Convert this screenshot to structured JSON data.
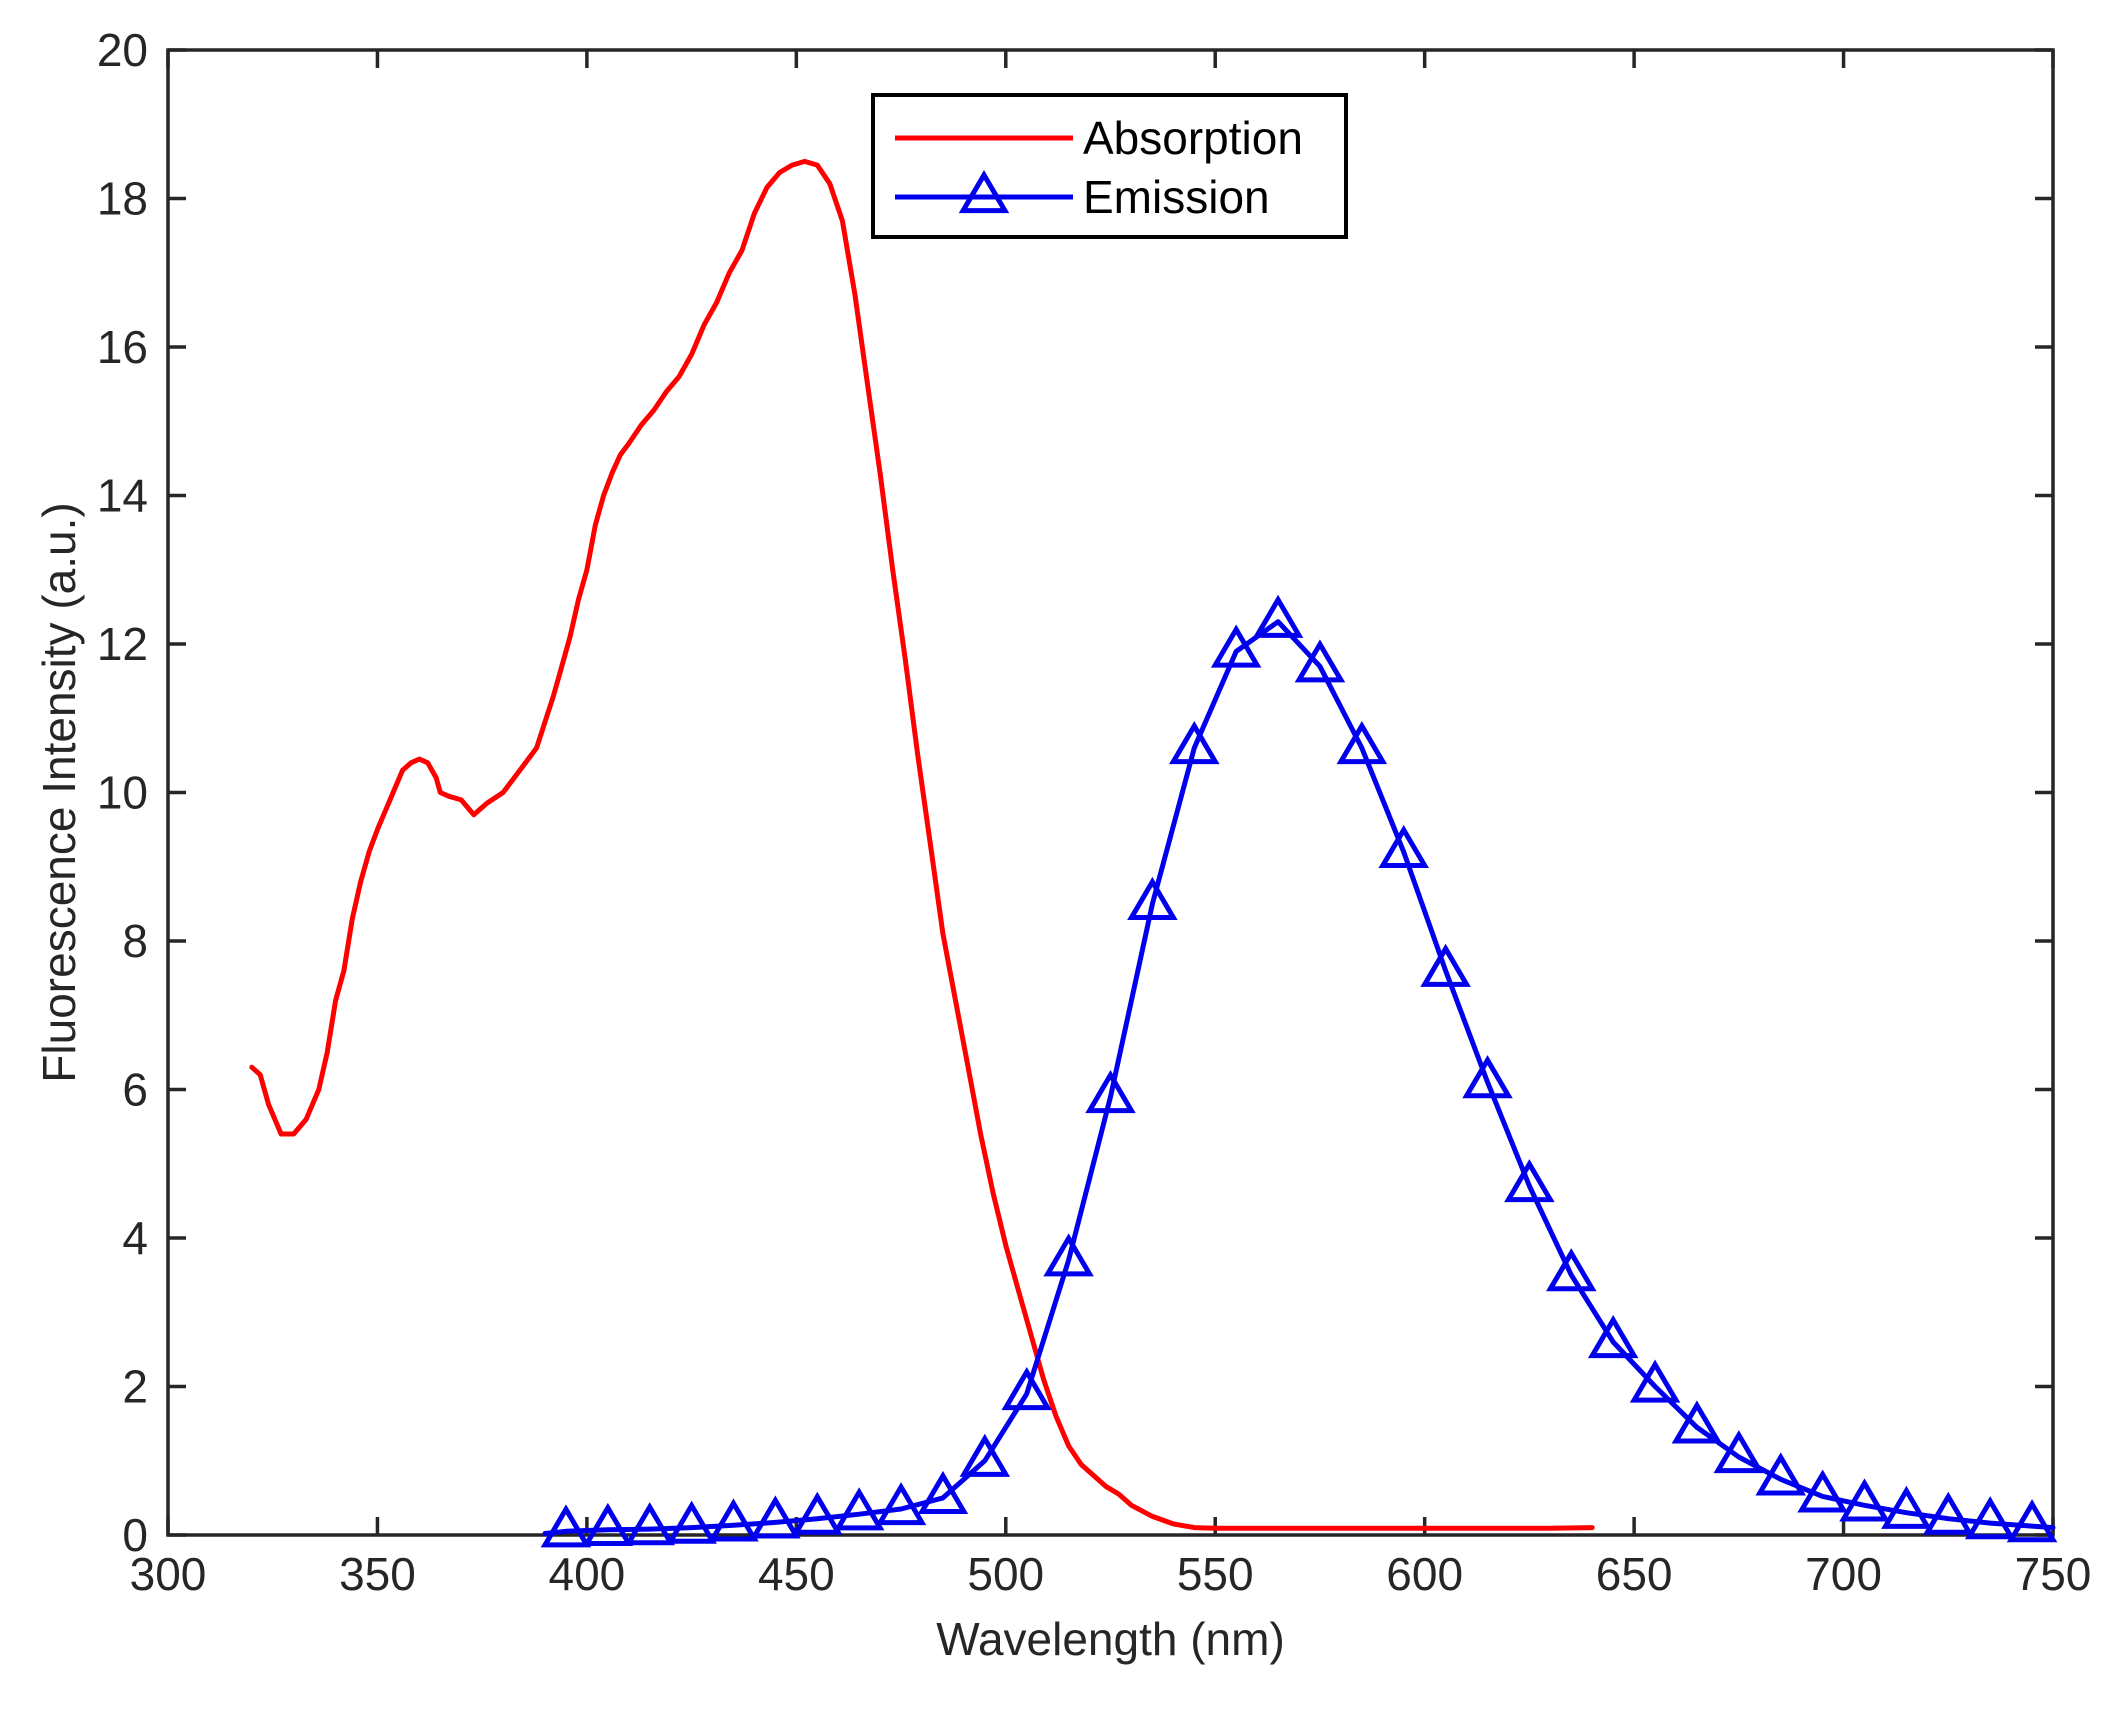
{
  "chart_data": {
    "type": "line",
    "title": "",
    "xlabel": "Wavelength (nm)",
    "ylabel": "Fluorescence Intensity (a.u.)",
    "xlim": [
      300,
      750
    ],
    "ylim": [
      0,
      20
    ],
    "xticks": [
      300,
      350,
      400,
      450,
      500,
      550,
      600,
      650,
      700,
      750
    ],
    "yticks": [
      0,
      2,
      4,
      6,
      8,
      10,
      12,
      14,
      16,
      18,
      20
    ],
    "xtick_labels": [
      "300",
      "350",
      "400",
      "450",
      "500",
      "550",
      "600",
      "650",
      "700",
      "750"
    ],
    "ytick_labels": [
      "0",
      "2",
      "4",
      "6",
      "8",
      "10",
      "12",
      "14",
      "16",
      "18",
      "20"
    ],
    "grid": false,
    "legend_position": "top-center",
    "series": [
      {
        "name": "Absorption",
        "color": "#ff0000",
        "marker": "none",
        "x": [
          320,
          322,
          324,
          327,
          330,
          333,
          336,
          338,
          340,
          342,
          344,
          346,
          348,
          350,
          353,
          356,
          358,
          360,
          362,
          364,
          365,
          367,
          370,
          373,
          376,
          380,
          384,
          388,
          392,
          394,
          396,
          398,
          400,
          402,
          404,
          406,
          408,
          410,
          413,
          416,
          419,
          422,
          425,
          428,
          431,
          434,
          437,
          440,
          443,
          446,
          449,
          452,
          455,
          458,
          461,
          464,
          467,
          470,
          473,
          476,
          479,
          482,
          485,
          488,
          491,
          494,
          497,
          500,
          503,
          506,
          509,
          512,
          515,
          518,
          521,
          524,
          527,
          530,
          535,
          540,
          545,
          550,
          555,
          560,
          570,
          580,
          590,
          600,
          610,
          620,
          630,
          640
        ],
        "y": [
          6.3,
          6.2,
          5.8,
          5.4,
          5.4,
          5.6,
          6.0,
          6.5,
          7.2,
          7.6,
          8.3,
          8.8,
          9.2,
          9.5,
          9.9,
          10.3,
          10.4,
          10.45,
          10.4,
          10.2,
          10.0,
          9.95,
          9.9,
          9.7,
          9.85,
          10.0,
          10.3,
          10.6,
          11.3,
          11.7,
          12.1,
          12.6,
          13.0,
          13.6,
          14.0,
          14.3,
          14.55,
          14.7,
          14.95,
          15.15,
          15.4,
          15.6,
          15.9,
          16.3,
          16.6,
          17.0,
          17.3,
          17.8,
          18.15,
          18.35,
          18.45,
          18.5,
          18.45,
          18.2,
          17.7,
          16.7,
          15.5,
          14.3,
          13.0,
          11.8,
          10.5,
          9.3,
          8.1,
          7.2,
          6.3,
          5.4,
          4.6,
          3.9,
          3.3,
          2.7,
          2.1,
          1.6,
          1.2,
          0.95,
          0.8,
          0.65,
          0.55,
          0.4,
          0.25,
          0.15,
          0.1,
          0.09,
          0.09,
          0.09,
          0.09,
          0.09,
          0.09,
          0.09,
          0.09,
          0.09,
          0.09,
          0.1
        ]
      },
      {
        "name": "Emission",
        "color": "#0000ee",
        "marker": "triangle",
        "x": [
          390,
          395,
          405,
          415,
          425,
          435,
          445,
          455,
          465,
          475,
          485,
          495,
          505,
          515,
          525,
          535,
          545,
          555,
          565,
          575,
          585,
          595,
          605,
          615,
          625,
          635,
          645,
          655,
          665,
          675,
          685,
          695,
          705,
          715,
          725,
          735,
          745,
          750
        ],
        "y": [
          0.02,
          0.05,
          0.07,
          0.08,
          0.1,
          0.13,
          0.17,
          0.22,
          0.28,
          0.35,
          0.5,
          1.0,
          1.9,
          3.7,
          5.9,
          8.5,
          10.6,
          11.9,
          12.3,
          11.7,
          10.6,
          9.2,
          7.6,
          6.1,
          4.7,
          3.5,
          2.6,
          2.0,
          1.45,
          1.05,
          0.75,
          0.52,
          0.4,
          0.3,
          0.22,
          0.16,
          0.12,
          0.1
        ],
        "marker_x": [
          395,
          405,
          415,
          425,
          435,
          445,
          455,
          465,
          475,
          485,
          495,
          505,
          515,
          525,
          535,
          545,
          555,
          565,
          575,
          585,
          595,
          605,
          615,
          625,
          635,
          645,
          655,
          665,
          675,
          685,
          695,
          705,
          715,
          725,
          735,
          745
        ],
        "marker_y": [
          0.05,
          0.07,
          0.08,
          0.1,
          0.13,
          0.17,
          0.22,
          0.28,
          0.35,
          0.5,
          1.0,
          1.9,
          3.7,
          5.9,
          8.5,
          10.6,
          11.9,
          12.3,
          11.7,
          10.6,
          9.2,
          7.6,
          6.1,
          4.7,
          3.5,
          2.6,
          2.0,
          1.45,
          1.05,
          0.75,
          0.52,
          0.4,
          0.3,
          0.22,
          0.16,
          0.12
        ]
      }
    ]
  }
}
